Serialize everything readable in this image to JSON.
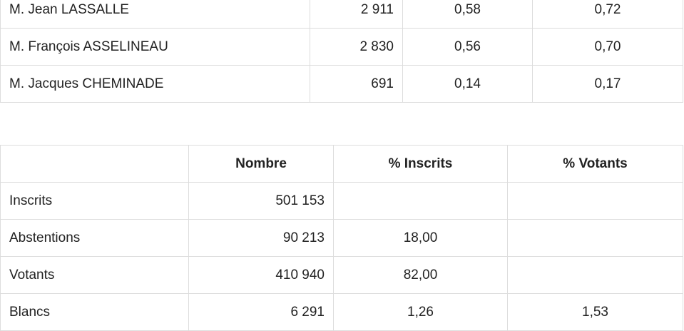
{
  "candidates": [
    {
      "name": "M. Jean LASSALLE",
      "votes": "2 911",
      "pct_inscrits": "0,58",
      "pct_exprimes": "0,72"
    },
    {
      "name": "M. François ASSELINEAU",
      "votes": "2 830",
      "pct_inscrits": "0,56",
      "pct_exprimes": "0,70"
    },
    {
      "name": "M. Jacques CHEMINADE",
      "votes": "691",
      "pct_inscrits": "0,14",
      "pct_exprimes": "0,17"
    }
  ],
  "summary": {
    "headers": [
      "",
      "Nombre",
      "% Inscrits",
      "% Votants"
    ],
    "rows": [
      {
        "label": "Inscrits",
        "nombre": "501 153",
        "pct_inscrits": "",
        "pct_votants": ""
      },
      {
        "label": "Abstentions",
        "nombre": "90 213",
        "pct_inscrits": "18,00",
        "pct_votants": ""
      },
      {
        "label": "Votants",
        "nombre": "410 940",
        "pct_inscrits": "82,00",
        "pct_votants": ""
      },
      {
        "label": "Blancs",
        "nombre": "6 291",
        "pct_inscrits": "1,26",
        "pct_votants": "1,53"
      }
    ]
  }
}
